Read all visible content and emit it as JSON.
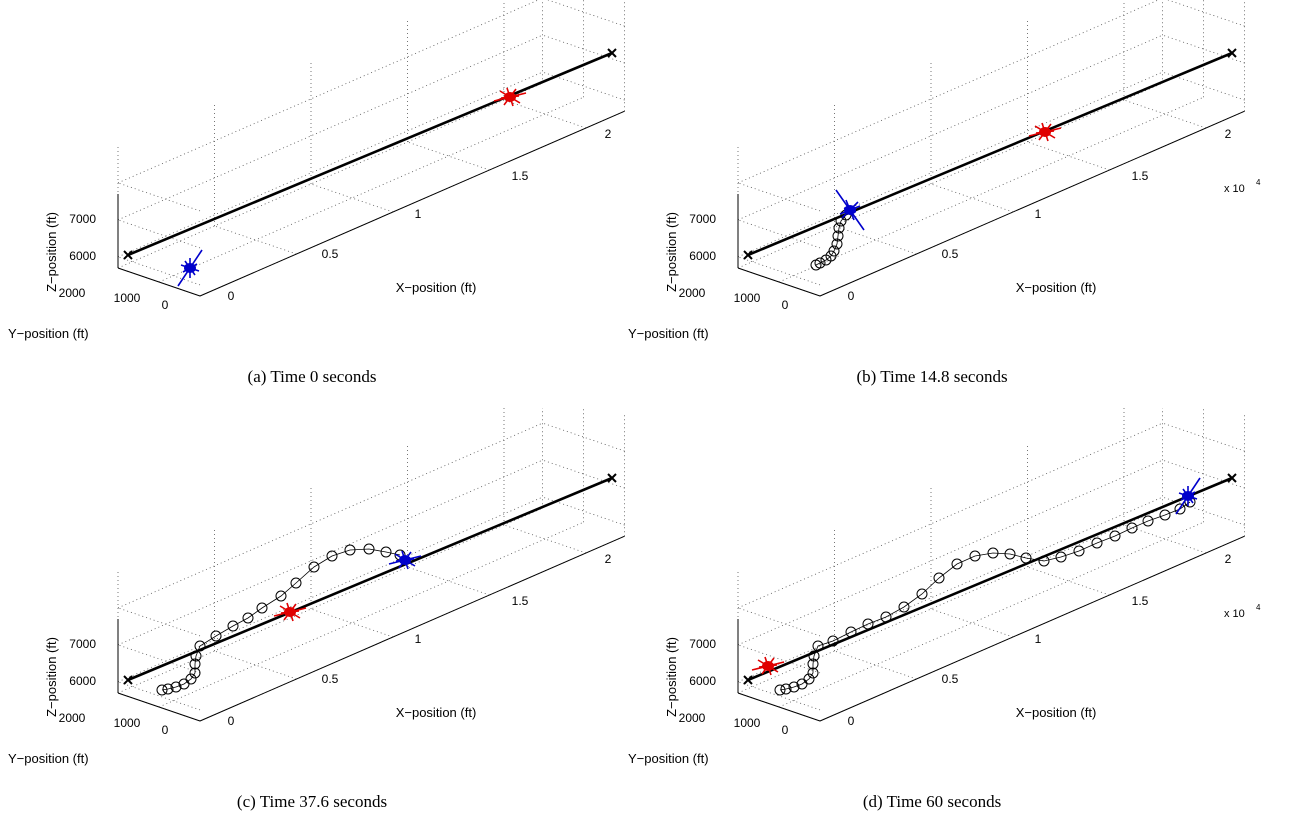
{
  "panels": [
    {
      "caption": "(a)  Time 0 seconds",
      "x_axis": {
        "label": "X−position (ft)",
        "ticks": [
          "0",
          "0.5",
          "1",
          "1.5",
          "2"
        ]
      },
      "y_axis": {
        "label": "Y−position (ft)",
        "ticks": [
          "2000",
          "1000",
          "0"
        ]
      },
      "z_axis": {
        "label": "Z−position (ft)",
        "ticks": [
          "6000",
          "7000"
        ]
      }
    },
    {
      "caption": "(b)  Time 14.8 seconds",
      "x_axis": {
        "label": "X−position (ft)",
        "ticks": [
          "0",
          "0.5",
          "1",
          "1.5",
          "2"
        ],
        "multiplier": {
          "base": "x 10",
          "exponent": "4"
        }
      },
      "y_axis": {
        "label": "Y−position (ft)",
        "ticks": [
          "2000",
          "1000",
          "0"
        ]
      },
      "z_axis": {
        "label": "Z−position (ft)",
        "ticks": [
          "6000",
          "7000"
        ]
      }
    },
    {
      "caption": "(c)  Time 37.6 seconds",
      "x_axis": {
        "label": "X−position (ft)",
        "ticks": [
          "0",
          "0.5",
          "1",
          "1.5",
          "2"
        ]
      },
      "y_axis": {
        "label": "Y−position (ft)",
        "ticks": [
          "2000",
          "1000",
          "0"
        ]
      },
      "z_axis": {
        "label": "Z−position (ft)",
        "ticks": [
          "6000",
          "7000"
        ]
      }
    },
    {
      "caption": "(d)  Time 60 seconds",
      "x_axis": {
        "label": "X−position (ft)",
        "ticks": [
          "0",
          "0.5",
          "1",
          "1.5",
          "2"
        ],
        "multiplier": {
          "base": "x 10",
          "exponent": "4"
        }
      },
      "y_axis": {
        "label": "Y−position (ft)",
        "ticks": [
          "2000",
          "1000",
          "0"
        ]
      },
      "z_axis": {
        "label": "Z−position (ft)",
        "ticks": [
          "6000",
          "7000"
        ]
      }
    }
  ]
}
